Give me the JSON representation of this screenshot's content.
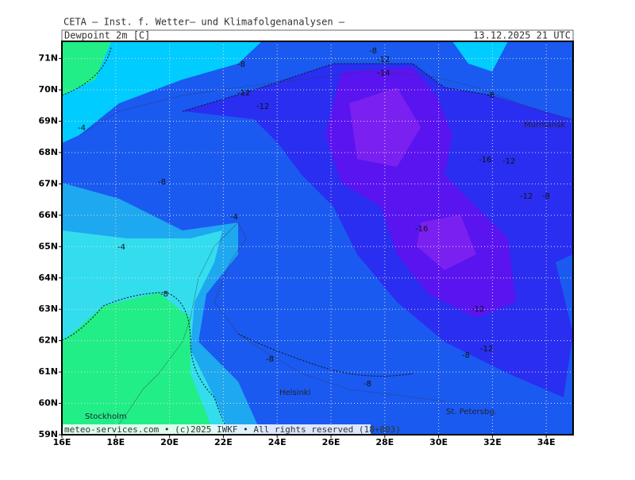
{
  "header": {
    "title": "CETA — Inst. f. Wetter— und Klimafolgenanalysen —",
    "variable": "Dewpoint_2m [C]",
    "datetime": "13.12.2025 21 UTC"
  },
  "axes": {
    "lon_labels": [
      "16E",
      "18E",
      "20E",
      "22E",
      "24E",
      "26E",
      "28E",
      "30E",
      "32E",
      "34E"
    ],
    "lat_labels": [
      "59N",
      "60N",
      "61N",
      "62N",
      "63N",
      "64N",
      "65N",
      "66N",
      "67N",
      "68N",
      "69N",
      "70N",
      "71N"
    ]
  },
  "contour_labels": [
    "-8",
    "-8",
    "-12",
    "-14",
    "-12",
    "-12",
    "-8",
    "-4",
    "-16",
    "-12",
    "-8",
    "-12",
    "-8",
    "-4",
    "-16",
    "-4",
    "-8",
    "-12",
    "-12",
    "-8",
    "-8",
    "-8"
  ],
  "cities": [
    "Murmansk",
    "Helsinki",
    "St. Petersbg.",
    "Stockholm"
  ],
  "footer": "meteo-services.com • (c)2025 IWKF • All rights reserved (18+003)"
}
